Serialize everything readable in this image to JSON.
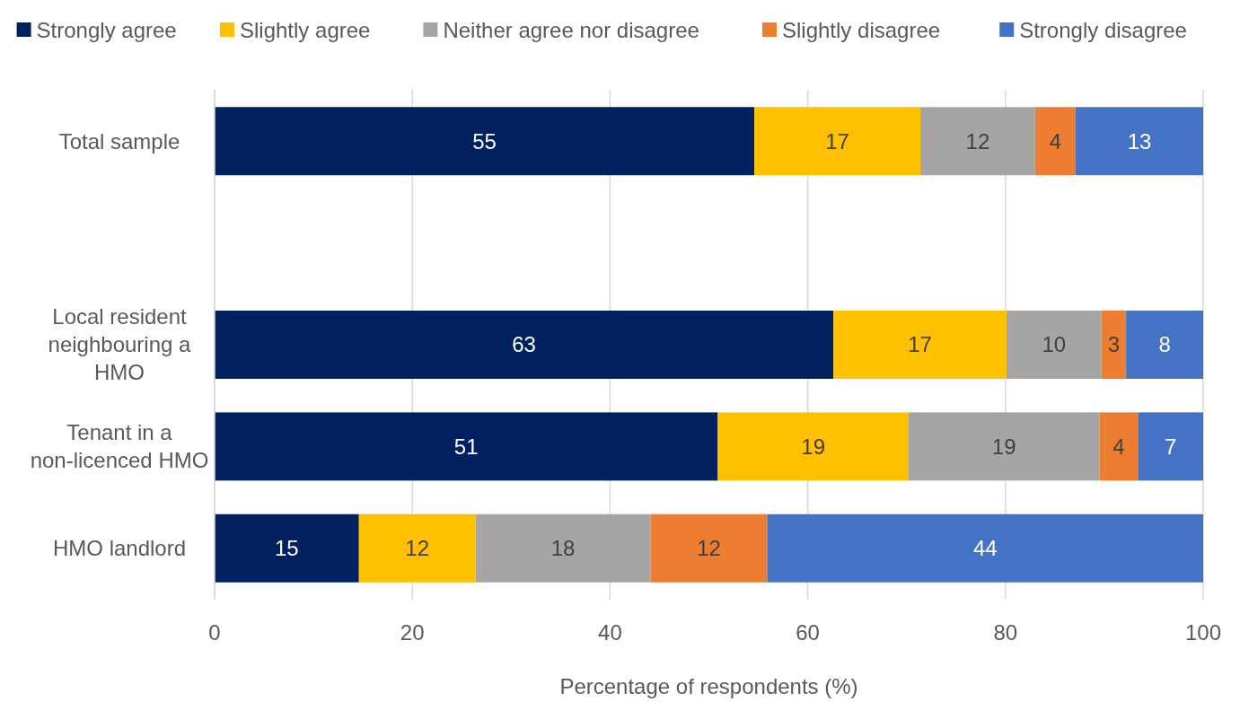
{
  "chart_data": {
    "type": "bar",
    "orientation": "horizontal",
    "stacked": true,
    "categories": [
      "Total sample",
      null,
      "Local resident neighbouring a HMO",
      "Tenant in a non-licenced HMO",
      "HMO landlord"
    ],
    "series": [
      {
        "name": "Strongly agree",
        "color": "#002060",
        "values": [
          54.6,
          null,
          62.6,
          50.9,
          14.6
        ],
        "value_labels": [
          "55",
          null,
          "63",
          "51",
          "15"
        ]
      },
      {
        "name": "Slightly agree",
        "color": "#ffc000",
        "values": [
          16.8,
          null,
          17.5,
          19.3,
          11.8
        ],
        "value_labels": [
          "17",
          null,
          "17",
          "19",
          "12"
        ]
      },
      {
        "name": "Neither agree nor disagree",
        "color": "#a5a5a5",
        "values": [
          11.6,
          null,
          9.6,
          19.3,
          17.7
        ],
        "value_labels": [
          "12",
          null,
          "10",
          "19",
          "18"
        ]
      },
      {
        "name": "Slightly disagree",
        "color": "#ed7d31",
        "values": [
          4.1,
          null,
          2.5,
          3.9,
          11.8
        ],
        "value_labels": [
          "4",
          null,
          "3",
          "4",
          "12"
        ]
      },
      {
        "name": "Strongly disagree",
        "color": "#4472c4",
        "values": [
          12.9,
          null,
          7.8,
          6.6,
          44.1
        ],
        "value_labels": [
          "13",
          null,
          "8",
          "7",
          "44"
        ]
      }
    ],
    "xlim": [
      0,
      100
    ],
    "xticks": [
      0,
      20,
      40,
      60,
      80,
      100
    ],
    "xlabel": "Percentage of respondents (%)",
    "grid": "x",
    "legend": "top"
  }
}
